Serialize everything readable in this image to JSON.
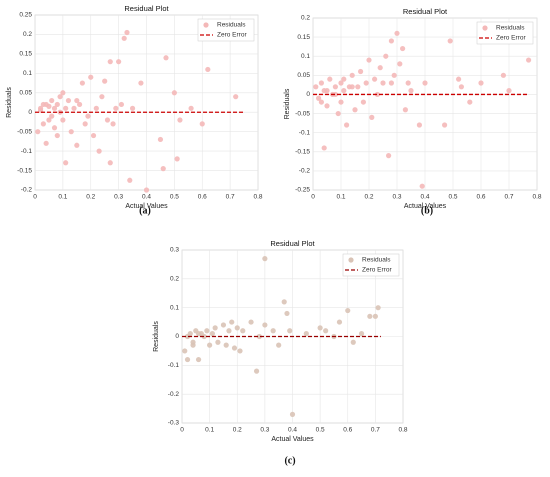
{
  "chart_data": [
    {
      "type": "scatter",
      "title": "Residual Plot",
      "caption": "(a)",
      "x_label": "Actual Values",
      "y_label": "Residuals",
      "xlim": [
        0,
        0.8
      ],
      "ylim": [
        -0.2,
        0.25
      ],
      "xticks": [
        0,
        0.1,
        0.2,
        0.3,
        0.4,
        0.5,
        0.6,
        0.7,
        0.8
      ],
      "yticks": [
        -0.2,
        -0.15,
        -0.1,
        -0.05,
        0,
        0.05,
        0.1,
        0.15,
        0.2,
        0.25
      ],
      "grid": true,
      "legend": "upper right",
      "series": [
        {
          "name": "Residuals",
          "type": "scatter",
          "color": "#f4b8b8",
          "x": [
            0.01,
            0.02,
            0.03,
            0.03,
            0.04,
            0.05,
            0.05,
            0.06,
            0.07,
            0.07,
            0.08,
            0.08,
            0.09,
            0.1,
            0.1,
            0.11,
            0.12,
            0.13,
            0.14,
            0.15,
            0.16,
            0.17,
            0.18,
            0.2,
            0.21,
            0.22,
            0.23,
            0.24,
            0.25,
            0.26,
            0.27,
            0.27,
            0.28,
            0.29,
            0.3,
            0.31,
            0.32,
            0.33,
            0.34,
            0.35,
            0.38,
            0.4,
            0.45,
            0.46,
            0.47,
            0.5,
            0.51,
            0.52,
            0.56,
            0.6,
            0.62,
            0.72,
            0.02,
            0.04,
            0.06,
            0.09,
            0.11,
            0.15,
            0.19
          ],
          "values": [
            -0.05,
            0.01,
            -0.03,
            0.02,
            -0.08,
            0.015,
            -0.02,
            0.03,
            -0.04,
            0.01,
            0.02,
            -0.06,
            0.04,
            -0.02,
            0.05,
            -0.13,
            0.03,
            -0.05,
            0.01,
            -0.085,
            0.02,
            0.075,
            -0.03,
            0.09,
            -0.06,
            0.01,
            -0.1,
            0.04,
            0.08,
            -0.02,
            0.13,
            -0.13,
            -0.03,
            0.01,
            0.13,
            0.02,
            0.19,
            0.205,
            -0.175,
            0.01,
            0.075,
            -0.2,
            -0.07,
            -0.145,
            0.14,
            0.05,
            -0.12,
            -0.02,
            0.01,
            -0.03,
            0.11,
            0.04,
            0.005,
            0.02,
            -0.01,
            0,
            0.01,
            0.03,
            -0.01
          ]
        },
        {
          "name": "Zero Error",
          "type": "line",
          "linestyle": "dashed",
          "color": "#cc0000",
          "x": [
            0,
            0.75
          ],
          "values": [
            0,
            0
          ]
        }
      ]
    },
    {
      "type": "scatter",
      "title": "Residual Plot",
      "caption": "(b)",
      "x_label": "Actual Values",
      "y_label": "Residuals",
      "xlim": [
        0,
        0.8
      ],
      "ylim": [
        -0.25,
        0.2
      ],
      "xticks": [
        0,
        0.1,
        0.2,
        0.3,
        0.4,
        0.5,
        0.6,
        0.7,
        0.8
      ],
      "yticks": [
        -0.25,
        -0.2,
        -0.15,
        -0.1,
        -0.05,
        0,
        0.05,
        0.1,
        0.15,
        0.2
      ],
      "grid": true,
      "legend": "upper right",
      "series": [
        {
          "name": "Residuals",
          "type": "scatter",
          "color": "#f4b8b8",
          "x": [
            0.01,
            0.02,
            0.03,
            0.04,
            0.05,
            0.05,
            0.06,
            0.07,
            0.08,
            0.09,
            0.1,
            0.1,
            0.11,
            0.12,
            0.13,
            0.14,
            0.15,
            0.16,
            0.17,
            0.18,
            0.19,
            0.2,
            0.21,
            0.22,
            0.23,
            0.24,
            0.25,
            0.26,
            0.27,
            0.28,
            0.29,
            0.3,
            0.31,
            0.32,
            0.33,
            0.34,
            0.35,
            0.38,
            0.39,
            0.4,
            0.47,
            0.49,
            0.52,
            0.53,
            0.56,
            0.6,
            0.62,
            0.68,
            0.7,
            0.77,
            0.03,
            0.04,
            0.08,
            0.11,
            0.14,
            0.28
          ],
          "values": [
            0.02,
            -0.01,
            0.03,
            -0.14,
            0.01,
            -0.03,
            0.04,
            0,
            0.02,
            -0.05,
            0.03,
            -0.02,
            0.04,
            -0.08,
            0.02,
            0.05,
            -0.04,
            0.02,
            0.06,
            -0.02,
            0.03,
            0.09,
            -0.06,
            0.04,
            0,
            0.07,
            0.03,
            0.1,
            -0.16,
            0.03,
            0.05,
            0.16,
            0.08,
            0.12,
            -0.04,
            0.03,
            0.01,
            -0.08,
            -0.24,
            0.03,
            -0.08,
            0.14,
            0.04,
            0.02,
            -0.02,
            0.03,
            0.14,
            0.05,
            0.01,
            0.09,
            -0.02,
            0.01,
            0,
            0.01,
            0.02,
            0.14
          ]
        },
        {
          "name": "Zero Error",
          "type": "line",
          "linestyle": "dashed",
          "color": "#cc0000",
          "x": [
            0,
            0.77
          ],
          "values": [
            0,
            0
          ]
        }
      ]
    },
    {
      "type": "scatter",
      "title": "Residual Plot",
      "caption": "(c)",
      "x_label": "Actual Values",
      "y_label": "Residuals",
      "xlim": [
        0,
        0.8
      ],
      "ylim": [
        -0.3,
        0.3
      ],
      "xticks": [
        0,
        0.1,
        0.2,
        0.3,
        0.4,
        0.5,
        0.6,
        0.7,
        0.8
      ],
      "yticks": [
        -0.3,
        -0.2,
        -0.1,
        0,
        0.1,
        0.2,
        0.3
      ],
      "grid": true,
      "legend": "upper right",
      "series": [
        {
          "name": "Residuals",
          "type": "scatter",
          "color": "#d9c3b6",
          "x": [
            0.01,
            0.02,
            0.03,
            0.04,
            0.05,
            0.06,
            0.07,
            0.08,
            0.09,
            0.1,
            0.11,
            0.12,
            0.13,
            0.15,
            0.16,
            0.17,
            0.18,
            0.19,
            0.2,
            0.21,
            0.22,
            0.25,
            0.27,
            0.28,
            0.3,
            0.3,
            0.33,
            0.35,
            0.37,
            0.38,
            0.39,
            0.4,
            0.45,
            0.5,
            0.52,
            0.55,
            0.57,
            0.6,
            0.62,
            0.65,
            0.68,
            0.7,
            0.71,
            0.02,
            0.04,
            0.06
          ],
          "values": [
            -0.05,
            -0.08,
            0.01,
            -0.02,
            0.02,
            -0.08,
            0.01,
            0,
            0.02,
            -0.03,
            0.01,
            0.03,
            -0.02,
            0.04,
            -0.03,
            0.02,
            0.05,
            -0.04,
            0.03,
            -0.05,
            0.02,
            0.05,
            -0.12,
            0,
            0.27,
            0.04,
            0.02,
            -0.03,
            0.12,
            0.08,
            0.02,
            -0.27,
            0.01,
            0.03,
            0.02,
            0,
            0.05,
            0.09,
            -0.02,
            0.01,
            0.07,
            0.07,
            0.1,
            0,
            -0.03,
            0.01
          ]
        },
        {
          "name": "Zero Error",
          "type": "line",
          "linestyle": "dashed",
          "color": "#990000",
          "x": [
            0,
            0.72
          ],
          "values": [
            0,
            0
          ]
        }
      ]
    }
  ]
}
